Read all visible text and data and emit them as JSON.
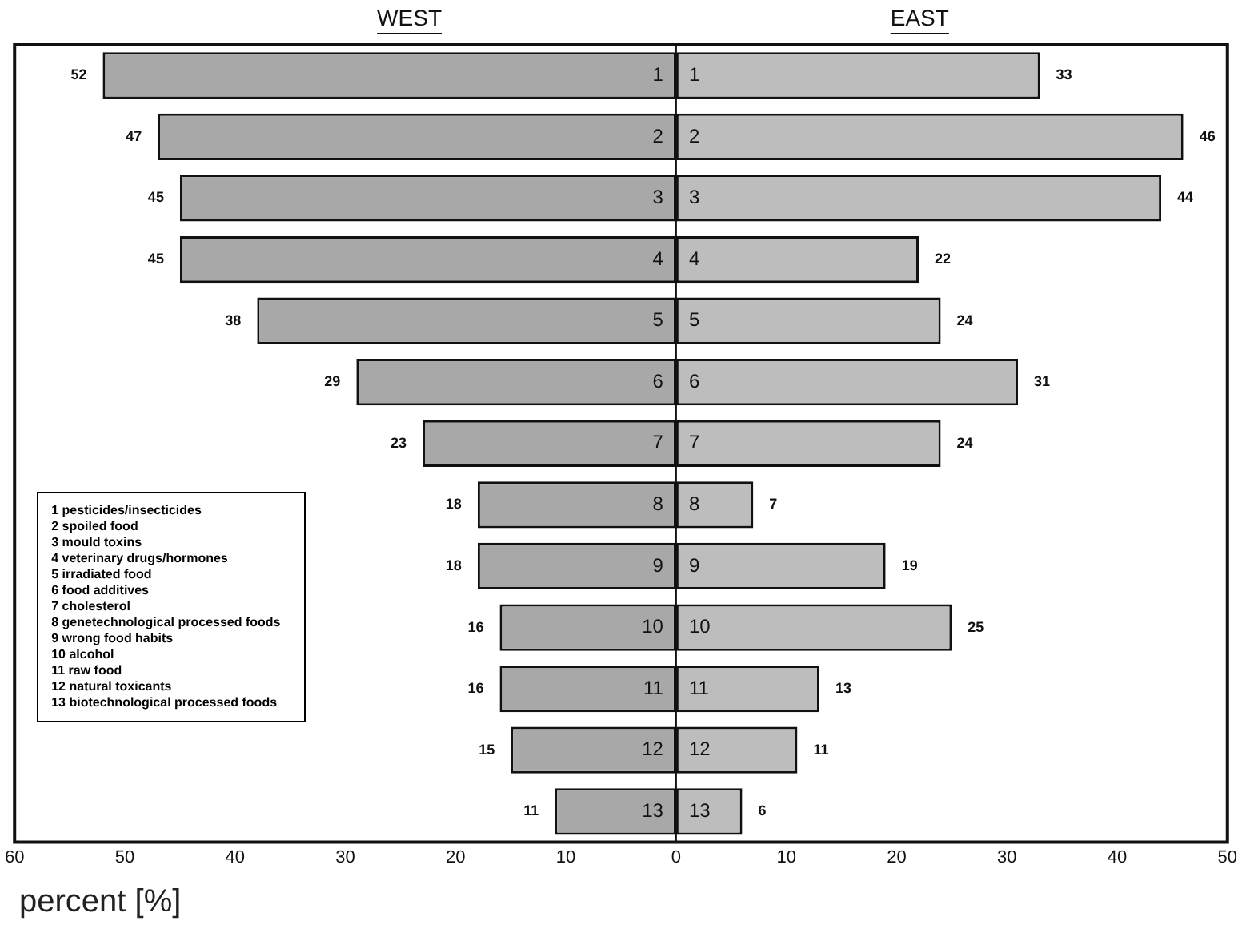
{
  "chart_data": {
    "type": "bar",
    "orientation": "horizontal",
    "data_labels": true,
    "categories": [
      "1",
      "2",
      "3",
      "4",
      "5",
      "6",
      "7",
      "8",
      "9",
      "10",
      "11",
      "12",
      "13"
    ],
    "series": [
      {
        "name": "WEST",
        "color": "#a8a8a8",
        "values": [
          52,
          47,
          45,
          45,
          38,
          29,
          23,
          18,
          18,
          16,
          16,
          15,
          11
        ],
        "base": [
          -52,
          -47,
          -45,
          -45,
          -38,
          -29,
          -23,
          -18,
          -18,
          -16,
          -16,
          -15,
          -11
        ]
      },
      {
        "name": "EAST",
        "color": "#bdbdbd",
        "values": [
          33,
          46,
          44,
          22,
          24,
          31,
          24,
          7,
          19,
          25,
          13,
          11,
          6
        ]
      }
    ],
    "xlim": [
      -60,
      50
    ],
    "xticks": [
      {
        "value": -60,
        "label": "60"
      },
      {
        "value": -50,
        "label": "50"
      },
      {
        "value": -40,
        "label": "40"
      },
      {
        "value": -30,
        "label": "30"
      },
      {
        "value": -20,
        "label": "20"
      },
      {
        "value": -10,
        "label": "10"
      },
      0,
      10,
      20,
      30,
      40,
      50
    ],
    "xlabel": "percent [%]",
    "grid": false,
    "legend": false,
    "annotations": [
      "1 pesticides/insecticides",
      "2 spoiled food",
      "3 mould toxins",
      "4 veterinary drugs/hormones",
      "5 irradiated food",
      "6 food additives",
      "7 cholesterol",
      "8 genetechnological processed foods",
      "9 wrong food habits",
      "10 alcohol",
      "11 raw food",
      "12 natural toxicants",
      "13 biotechnological processed foods"
    ]
  }
}
